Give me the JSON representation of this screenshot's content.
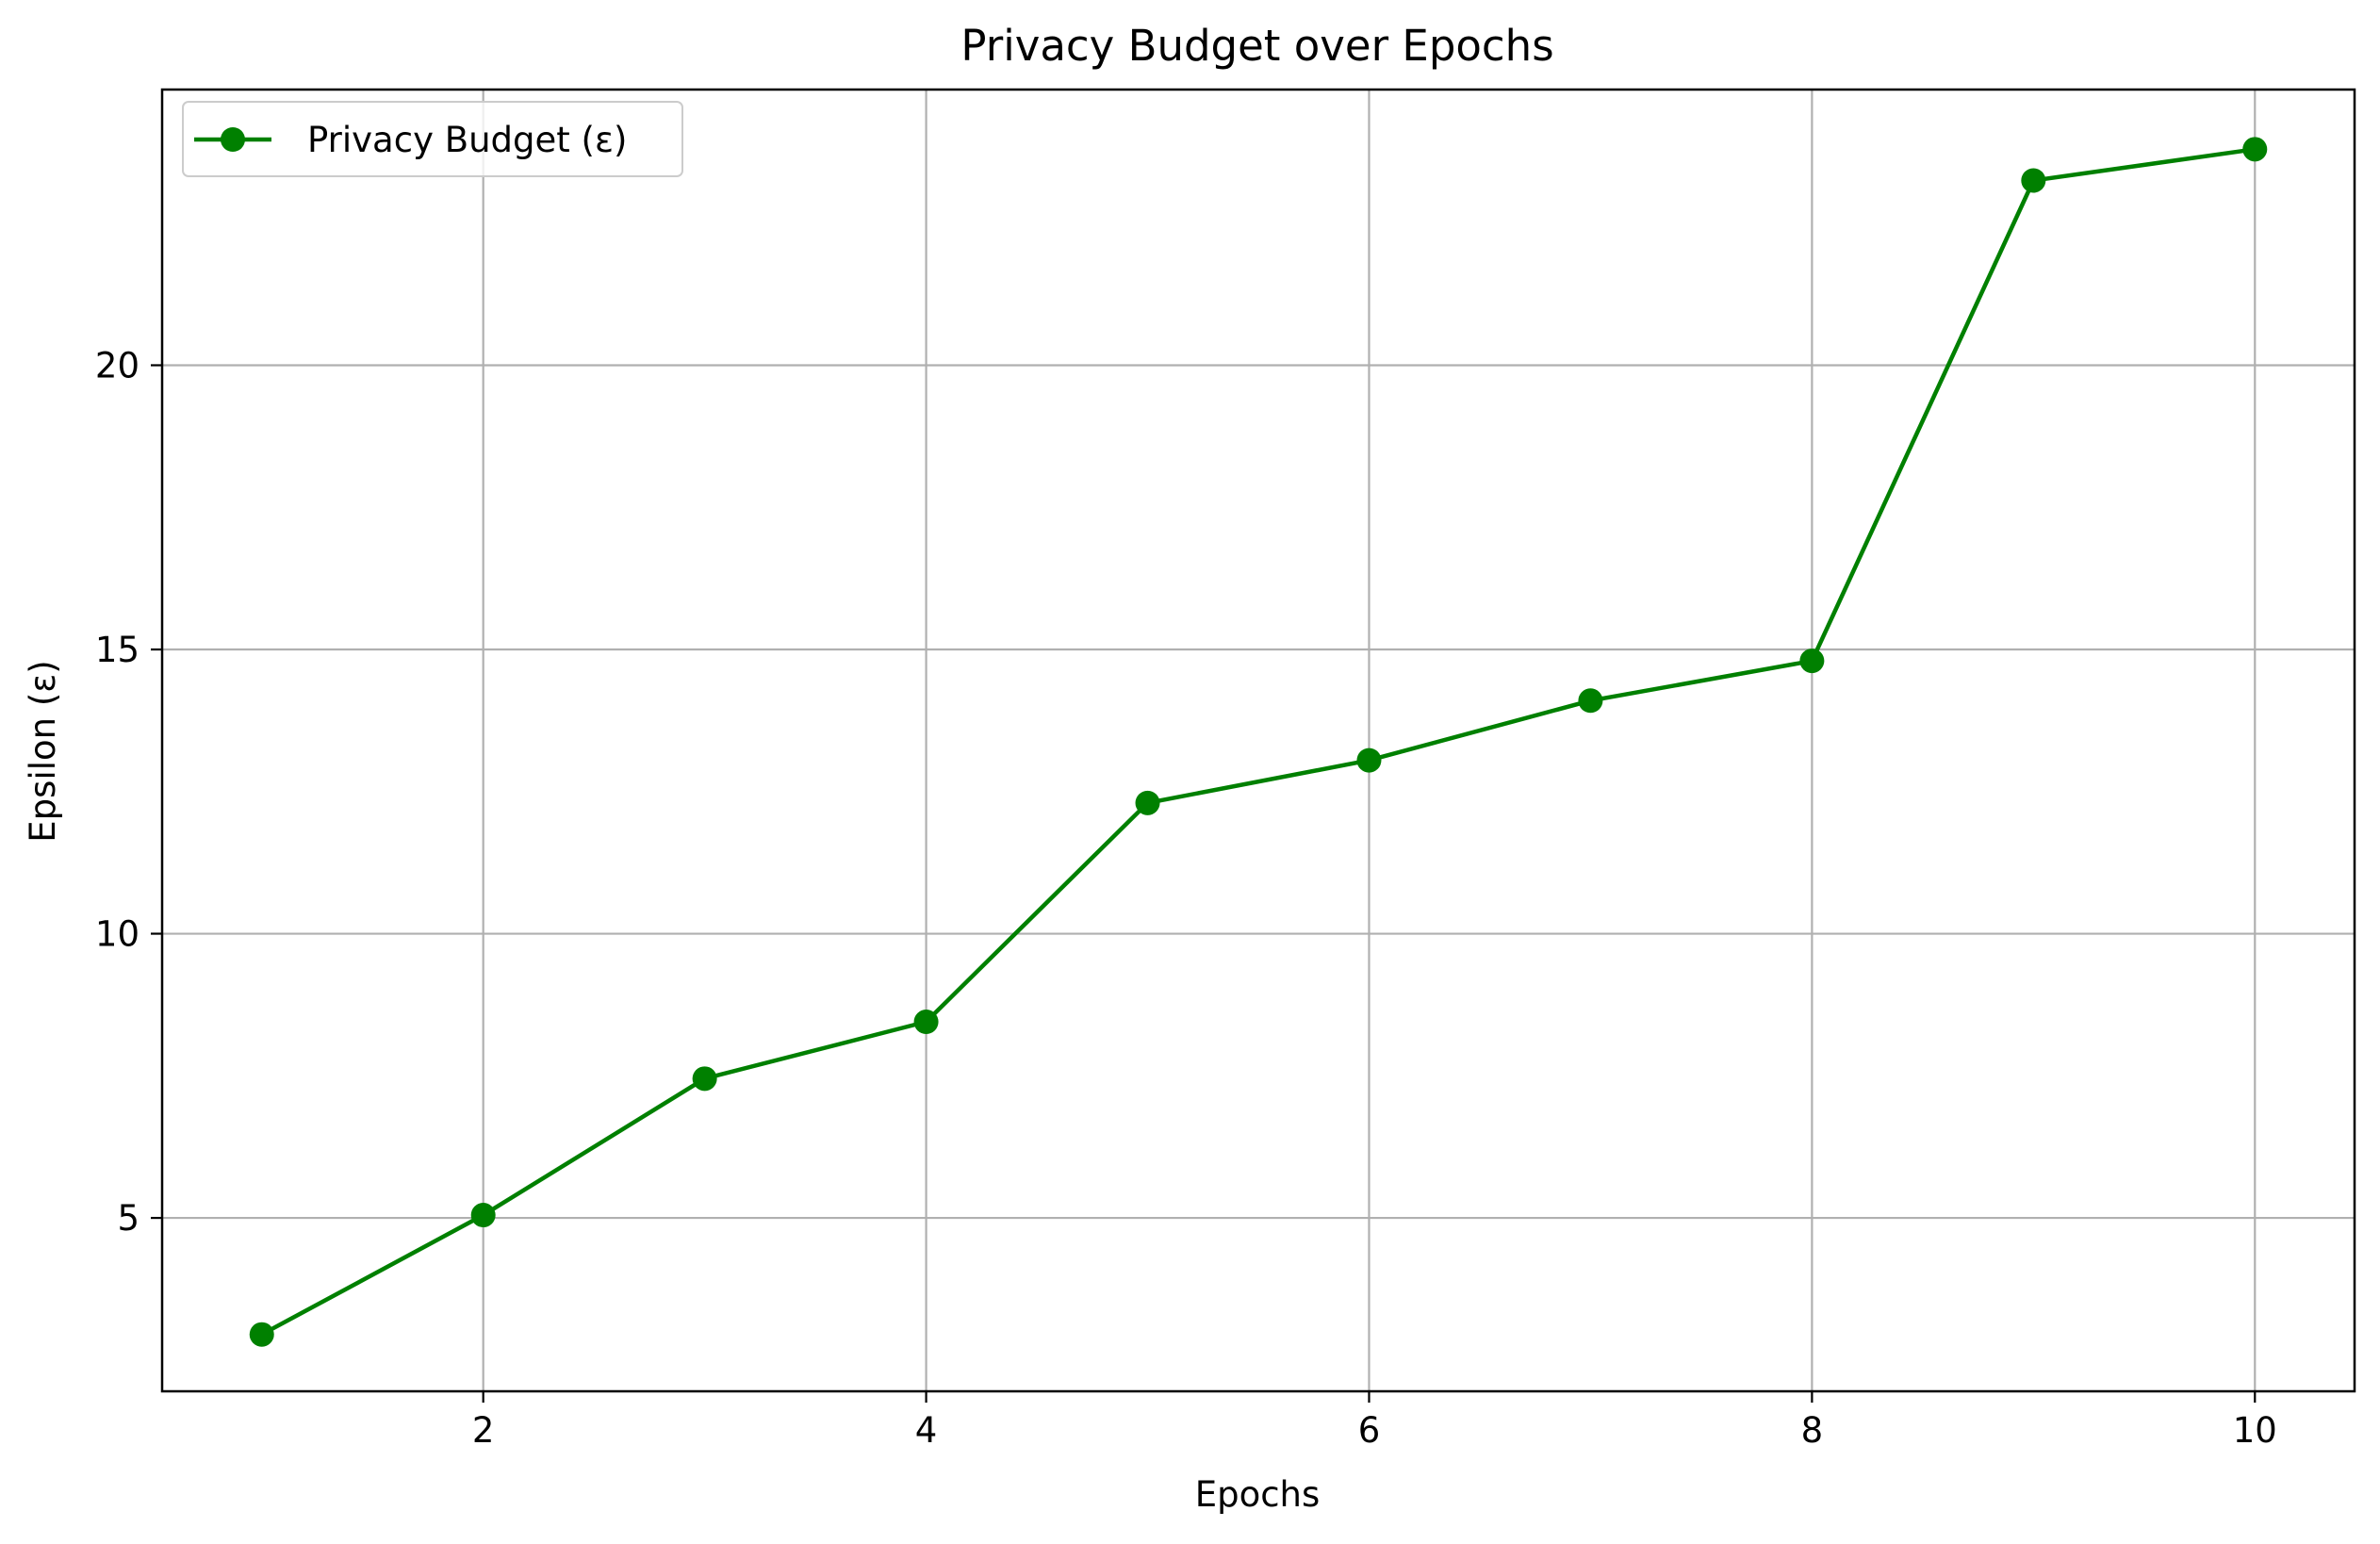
{
  "chart_data": {
    "type": "line",
    "title": "Privacy Budget over Epochs",
    "xlabel": "Epochs",
    "ylabel": "Epsilon (ε)",
    "x": [
      1,
      2,
      3,
      4,
      5,
      6,
      7,
      8,
      9,
      10
    ],
    "series": [
      {
        "name": "Privacy Budget (ε)",
        "values": [
          2.95,
          5.05,
          7.45,
          8.45,
          12.3,
          13.05,
          14.1,
          14.8,
          23.25,
          23.8
        ],
        "color": "#008000",
        "marker": "circle"
      }
    ],
    "xlim": [
      0.55,
      10.45
    ],
    "ylim": [
      1.95,
      24.85
    ],
    "xticks": [
      2,
      4,
      6,
      8,
      10
    ],
    "yticks": [
      5,
      10,
      15,
      20
    ],
    "grid": true,
    "legend_position": "top-left",
    "colors": {
      "grid": "#b0b0b0",
      "axes": "#000000"
    }
  }
}
